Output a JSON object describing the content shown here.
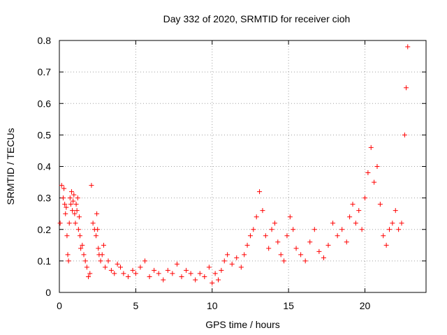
{
  "chart_data": {
    "type": "scatter",
    "title": "Day 332 of 2020, SRMTID for receiver cioh",
    "xlabel": "GPS time / hours",
    "ylabel": "SRMTID / TECUs",
    "xlim": [
      0,
      24
    ],
    "ylim": [
      0,
      0.8
    ],
    "x_ticks": [
      0,
      5,
      10,
      15,
      20
    ],
    "y_ticks": [
      0,
      0.1,
      0.2,
      0.3,
      0.4,
      0.5,
      0.6,
      0.7,
      0.8
    ],
    "x_tick_labels": [
      "0",
      "5",
      "10",
      "15",
      "20"
    ],
    "y_tick_labels": [
      "0",
      "0.1",
      "0.2",
      "0.3",
      "0.4",
      "0.5",
      "0.6",
      "0.7",
      "0.8"
    ],
    "grid": true,
    "marker": "+",
    "color": "#ff0000",
    "series": [
      {
        "name": "SRMTID",
        "x": [
          0.05,
          0.15,
          0.25,
          0.3,
          0.35,
          0.4,
          0.45,
          0.5,
          0.55,
          0.6,
          0.65,
          0.7,
          0.75,
          0.8,
          0.85,
          0.9,
          0.95,
          1.0,
          1.05,
          1.1,
          1.15,
          1.2,
          1.25,
          1.3,
          1.35,
          1.4,
          1.5,
          1.6,
          1.7,
          1.8,
          1.9,
          2.0,
          2.1,
          2.2,
          2.3,
          2.4,
          2.45,
          2.5,
          2.55,
          2.6,
          2.7,
          2.8,
          2.9,
          3.0,
          3.2,
          3.4,
          3.6,
          3.8,
          4.0,
          4.2,
          4.5,
          4.8,
          5.0,
          5.3,
          5.6,
          5.9,
          6.2,
          6.5,
          6.8,
          7.1,
          7.4,
          7.7,
          8.0,
          8.3,
          8.6,
          8.9,
          9.2,
          9.5,
          9.8,
          10.0,
          10.2,
          10.4,
          10.6,
          10.8,
          11.0,
          11.3,
          11.6,
          11.9,
          12.1,
          12.3,
          12.5,
          12.7,
          12.9,
          13.1,
          13.3,
          13.5,
          13.7,
          13.9,
          14.1,
          14.3,
          14.5,
          14.7,
          14.9,
          15.1,
          15.3,
          15.5,
          15.8,
          16.1,
          16.4,
          16.7,
          17.0,
          17.3,
          17.6,
          17.9,
          18.2,
          18.5,
          18.8,
          19.0,
          19.2,
          19.4,
          19.6,
          19.8,
          20.0,
          20.2,
          20.4,
          20.6,
          20.8,
          21.0,
          21.2,
          21.4,
          21.6,
          21.8,
          22.0,
          22.2,
          22.4,
          22.6,
          22.7,
          22.8
        ],
        "y": [
          0.22,
          0.34,
          0.3,
          0.33,
          0.28,
          0.25,
          0.27,
          0.18,
          0.12,
          0.1,
          0.22,
          0.3,
          0.28,
          0.32,
          0.26,
          0.29,
          0.31,
          0.25,
          0.22,
          0.28,
          0.26,
          0.3,
          0.2,
          0.24,
          0.18,
          0.14,
          0.15,
          0.12,
          0.1,
          0.08,
          0.05,
          0.06,
          0.34,
          0.22,
          0.2,
          0.18,
          0.25,
          0.2,
          0.14,
          0.12,
          0.1,
          0.12,
          0.15,
          0.08,
          0.1,
          0.07,
          0.06,
          0.09,
          0.08,
          0.06,
          0.05,
          0.07,
          0.06,
          0.08,
          0.1,
          0.05,
          0.07,
          0.06,
          0.04,
          0.07,
          0.06,
          0.09,
          0.05,
          0.07,
          0.06,
          0.04,
          0.06,
          0.05,
          0.08,
          0.03,
          0.06,
          0.04,
          0.07,
          0.1,
          0.12,
          0.09,
          0.11,
          0.08,
          0.12,
          0.15,
          0.18,
          0.2,
          0.24,
          0.32,
          0.26,
          0.18,
          0.14,
          0.2,
          0.22,
          0.16,
          0.12,
          0.1,
          0.18,
          0.24,
          0.2,
          0.14,
          0.12,
          0.1,
          0.16,
          0.2,
          0.13,
          0.11,
          0.15,
          0.22,
          0.18,
          0.2,
          0.16,
          0.24,
          0.28,
          0.22,
          0.26,
          0.2,
          0.3,
          0.38,
          0.46,
          0.35,
          0.4,
          0.28,
          0.18,
          0.15,
          0.2,
          0.22,
          0.26,
          0.2,
          0.22,
          0.5,
          0.65,
          0.78
        ]
      }
    ]
  }
}
